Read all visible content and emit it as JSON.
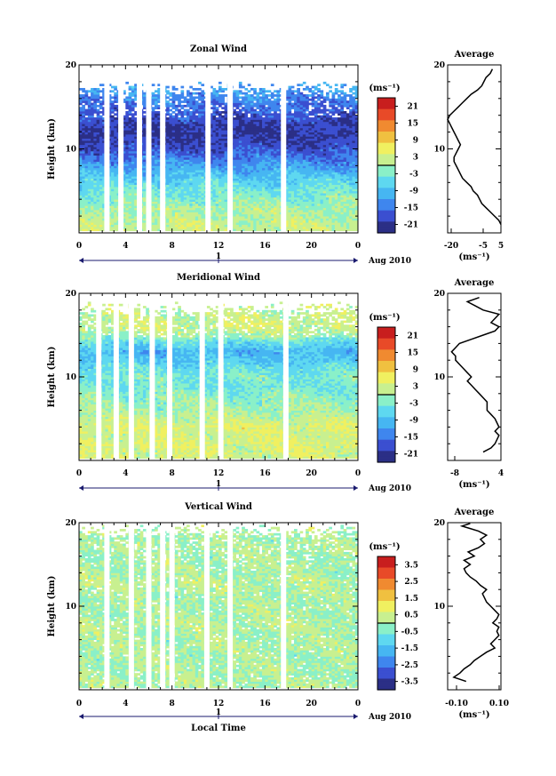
{
  "panels": [
    {
      "title": "Zonal Wind",
      "ylabel": "Height (km)",
      "xticks": [
        "0",
        "4",
        "8",
        "12",
        "16",
        "20",
        "0"
      ],
      "day_label": "1",
      "month_label": "Aug 2010",
      "unit_label": "(ms⁻¹)",
      "colorbar_ticks": [
        "21",
        "15",
        "9",
        "3",
        "-3",
        "-9",
        "-15",
        "-21"
      ],
      "avg_title": "Average",
      "avg_unit": "(ms⁻¹)",
      "avg_xticks": [
        "-20",
        "-5",
        "5"
      ]
    },
    {
      "title": "Meridional Wind",
      "ylabel": "Height (km)",
      "xticks": [
        "0",
        "4",
        "8",
        "12",
        "16",
        "20",
        "0"
      ],
      "day_label": "1",
      "month_label": "Aug 2010",
      "unit_label": "(ms⁻¹)",
      "colorbar_ticks": [
        "21",
        "15",
        "9",
        "3",
        "-3",
        "-9",
        "-15",
        "-21"
      ],
      "avg_title": "Average",
      "avg_unit": "(ms⁻¹)",
      "avg_xticks": [
        "-8",
        "4"
      ]
    },
    {
      "title": "Vertical Wind",
      "ylabel": "Height (km)",
      "xticks": [
        "0",
        "4",
        "8",
        "12",
        "16",
        "20",
        "0"
      ],
      "day_label": "1",
      "month_label": "Aug 2010",
      "unit_label": "(ms⁻¹)",
      "colorbar_ticks": [
        "3.5",
        "2.5",
        "1.5",
        "0.5",
        "-0.5",
        "-1.5",
        "-2.5",
        "-3.5"
      ],
      "avg_title": "Average",
      "avg_unit": "(ms⁻¹)",
      "avg_xticks": [
        "-0.10",
        "0.10"
      ]
    }
  ],
  "xlabel_bottom": "Local Time",
  "colors": {
    "scale": [
      "#2b2f86",
      "#3b4fd0",
      "#3f86ee",
      "#46b6f2",
      "#5ed8f0",
      "#8af0c8",
      "#c8f090",
      "#f0f060",
      "#f0c040",
      "#f08a30",
      "#e84a28",
      "#c81e1e"
    ]
  },
  "chart_data": [
    {
      "type": "heatmap",
      "title": "Zonal Wind",
      "xlabel": "",
      "ylabel": "Height (km)",
      "xlim": [
        0,
        24
      ],
      "ylim": [
        0,
        20
      ],
      "colorbar": {
        "label": "(ms⁻¹)",
        "ticks": [
          21,
          15,
          9,
          3,
          -3,
          -9,
          -15,
          -21
        ],
        "range": [
          -24,
          24
        ]
      },
      "missing_columns_hours": [
        2.4,
        3.6,
        5.2,
        6.0,
        7.2,
        11.1,
        13.0,
        17.6
      ],
      "profile_by_height": [
        {
          "z": 1,
          "v": 2
        },
        {
          "z": 2,
          "v": 1
        },
        {
          "z": 3,
          "v": 0
        },
        {
          "z": 4,
          "v": -2
        },
        {
          "z": 5,
          "v": -4
        },
        {
          "z": 6,
          "v": -6
        },
        {
          "z": 7,
          "v": -9
        },
        {
          "z": 8,
          "v": -12
        },
        {
          "z": 9,
          "v": -15
        },
        {
          "z": 10,
          "v": -18
        },
        {
          "z": 11,
          "v": -20
        },
        {
          "z": 12,
          "v": -21
        },
        {
          "z": 13,
          "v": -20
        },
        {
          "z": 14,
          "v": -18
        },
        {
          "z": 15,
          "v": -16
        },
        {
          "z": 16,
          "v": -14
        },
        {
          "z": 17,
          "v": -12
        }
      ],
      "average_profile": {
        "title": "Average",
        "xlabel": "(ms⁻¹)",
        "xlim": [
          -20,
          5
        ],
        "ylim": [
          0,
          20
        ],
        "x": [
          5,
          4,
          2,
          0,
          -2,
          -4,
          -5,
          -6,
          -8,
          -9,
          -11,
          -13,
          -14,
          -15,
          -16,
          -17,
          -17,
          -16,
          -15,
          -14,
          -15,
          -16,
          -17,
          -18,
          -19,
          -20,
          -19,
          -17,
          -15,
          -13,
          -11,
          -9,
          -6,
          -4,
          -3,
          -2,
          0,
          1
        ],
        "y": [
          1.0,
          1.5,
          2.0,
          2.5,
          3.0,
          3.5,
          4.0,
          4.5,
          5.0,
          5.5,
          6.0,
          6.5,
          7.0,
          7.5,
          8.0,
          8.5,
          9.0,
          9.5,
          10.0,
          10.5,
          11.0,
          11.5,
          12.0,
          12.5,
          13.0,
          13.5,
          14.0,
          14.5,
          15.0,
          15.5,
          16.0,
          16.5,
          17.0,
          17.5,
          18.0,
          18.5,
          19.0,
          19.5
        ]
      }
    },
    {
      "type": "heatmap",
      "title": "Meridional Wind",
      "xlabel": "",
      "ylabel": "Height (km)",
      "xlim": [
        0,
        24
      ],
      "ylim": [
        0,
        20
      ],
      "colorbar": {
        "label": "(ms⁻¹)",
        "ticks": [
          21,
          15,
          9,
          3,
          -3,
          -9,
          -15,
          -21
        ],
        "range": [
          -24,
          24
        ]
      },
      "missing_columns_hours": [
        1.7,
        3.2,
        4.5,
        6.3,
        7.8,
        10.6,
        12.2,
        17.8
      ],
      "profile_by_height": [
        {
          "z": 1,
          "v": 3
        },
        {
          "z": 2,
          "v": 4
        },
        {
          "z": 3,
          "v": 3
        },
        {
          "z": 4,
          "v": 4
        },
        {
          "z": 5,
          "v": 2
        },
        {
          "z": 6,
          "v": 0
        },
        {
          "z": 7,
          "v": -1
        },
        {
          "z": 8,
          "v": -2
        },
        {
          "z": 9,
          "v": -4
        },
        {
          "z": 10,
          "v": -3
        },
        {
          "z": 11,
          "v": -5
        },
        {
          "z": 12,
          "v": -8
        },
        {
          "z": 13,
          "v": -10
        },
        {
          "z": 14,
          "v": -6
        },
        {
          "z": 15,
          "v": 0
        },
        {
          "z": 16,
          "v": 3
        },
        {
          "z": 17,
          "v": 2
        }
      ],
      "average_profile": {
        "title": "Average",
        "xlabel": "(ms⁻¹)",
        "xlim": [
          -9,
          4.5
        ],
        "ylim": [
          0,
          20
        ],
        "x": [
          0,
          2,
          3,
          4,
          3,
          4,
          3,
          2,
          1,
          1,
          0,
          -1,
          -2,
          -3,
          -4,
          -3,
          -4,
          -5,
          -6,
          -7,
          -7,
          -8,
          -7,
          -6,
          -3,
          0,
          3,
          4,
          2,
          4,
          0,
          -2,
          -4,
          -1
        ],
        "y": [
          1.0,
          1.5,
          2.0,
          3.0,
          3.5,
          4.0,
          5.0,
          5.5,
          6.0,
          7.0,
          7.5,
          8.0,
          8.5,
          9.0,
          9.5,
          10.0,
          10.5,
          11.0,
          11.5,
          12.0,
          12.5,
          13.0,
          13.5,
          14.0,
          14.5,
          15.0,
          15.5,
          16.0,
          16.5,
          17.5,
          18.0,
          18.5,
          19.0,
          19.5
        ]
      }
    },
    {
      "type": "heatmap",
      "title": "Vertical Wind",
      "xlabel": "Local Time",
      "ylabel": "Height (km)",
      "xlim": [
        0,
        24
      ],
      "ylim": [
        0,
        20
      ],
      "colorbar": {
        "label": "(ms⁻¹)",
        "ticks": [
          3.5,
          2.5,
          1.5,
          0.5,
          -0.5,
          -1.5,
          -2.5,
          -3.5
        ],
        "range": [
          -4,
          4
        ]
      },
      "missing_columns_hours": [
        2.4,
        4.5,
        6.0,
        7.2,
        8.0,
        11.0,
        13.0,
        17.6
      ],
      "profile_by_height": [
        {
          "z": 1,
          "v": 0.1
        },
        {
          "z": 2,
          "v": 0.0
        },
        {
          "z": 3,
          "v": 0.1
        },
        {
          "z": 4,
          "v": 0.0
        },
        {
          "z": 5,
          "v": 0.1
        },
        {
          "z": 6,
          "v": 0.0
        },
        {
          "z": 7,
          "v": 0.1
        },
        {
          "z": 8,
          "v": 0.2
        },
        {
          "z": 9,
          "v": 0.0
        },
        {
          "z": 10,
          "v": 0.1
        },
        {
          "z": 11,
          "v": 0.0
        },
        {
          "z": 12,
          "v": 0.1
        },
        {
          "z": 13,
          "v": 0.2
        },
        {
          "z": 14,
          "v": 0.0
        },
        {
          "z": 15,
          "v": 0.1
        },
        {
          "z": 16,
          "v": 0.0
        },
        {
          "z": 17,
          "v": 0.1
        },
        {
          "z": 18,
          "v": 0.0
        },
        {
          "z": 19,
          "v": 0.1
        }
      ],
      "average_profile": {
        "title": "Average",
        "xlabel": "(ms⁻¹)",
        "xlim": [
          -0.13,
          0.13
        ],
        "ylim": [
          0,
          20
        ],
        "x": [
          -0.04,
          -0.1,
          -0.07,
          -0.05,
          -0.02,
          0.0,
          0.03,
          0.06,
          0.1,
          0.08,
          0.1,
          0.12,
          0.11,
          0.12,
          0.09,
          0.11,
          0.12,
          0.1,
          0.08,
          0.06,
          0.05,
          0.04,
          0.06,
          0.03,
          0.01,
          -0.02,
          -0.04,
          -0.05,
          -0.02,
          -0.05,
          0.0,
          -0.03,
          0.02,
          0.05,
          0.03,
          0.06,
          0.02,
          -0.02,
          -0.06,
          -0.02
        ],
        "y": [
          1.0,
          1.5,
          2.0,
          2.5,
          3.0,
          3.5,
          4.0,
          4.5,
          5.0,
          5.5,
          6.0,
          6.5,
          7.0,
          7.5,
          8.0,
          8.5,
          9.0,
          9.5,
          10.0,
          10.5,
          11.0,
          11.5,
          12.0,
          12.5,
          13.0,
          13.5,
          14.0,
          14.5,
          15.0,
          15.5,
          16.0,
          16.5,
          17.0,
          17.5,
          18.0,
          18.5,
          19.0,
          19.3,
          19.6,
          19.9
        ]
      }
    }
  ]
}
